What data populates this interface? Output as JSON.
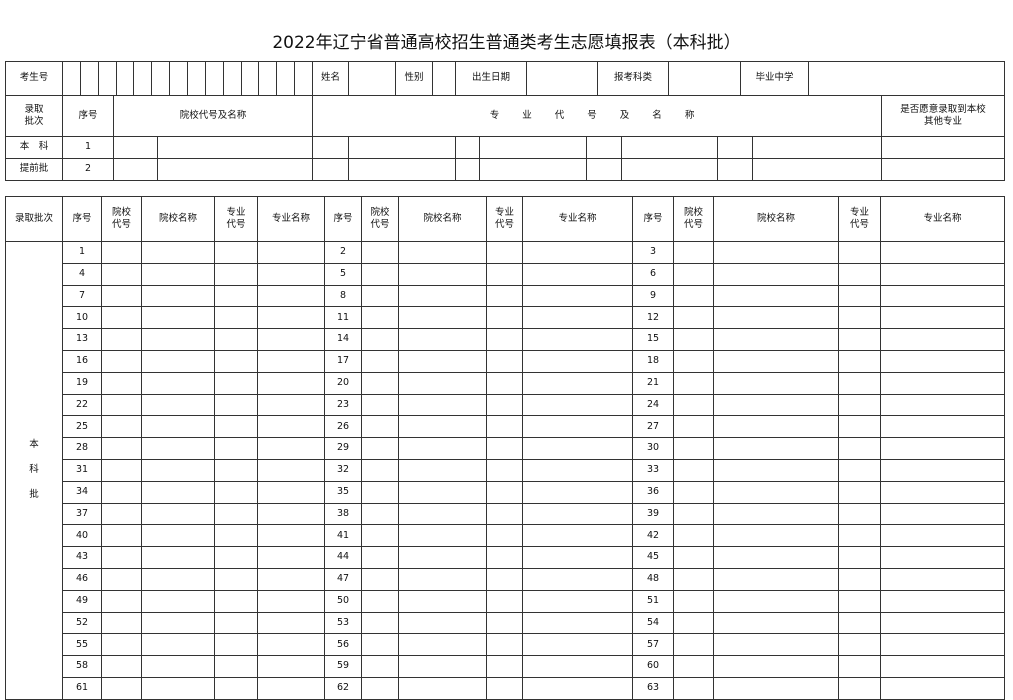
{
  "title": "2022年辽宁省普通高校招生普通类考生志愿填报表（本科批）",
  "info": {
    "exam_no": "考生号",
    "name": "姓名",
    "gender": "性别",
    "birth": "出生日期",
    "category": "报考科类",
    "school": "毕业中学"
  },
  "early": {
    "batch_label_1": "录取",
    "batch_label_2": "批次",
    "seq": "序号",
    "college": "院校代号及名称",
    "major": "专 业 代 号 及 名 称",
    "adjust_1": "是否愿意录取到本校",
    "adjust_2": "其他专业",
    "batch_1": "本　科",
    "batch_2": "提前批",
    "rows": [
      "1",
      "2"
    ]
  },
  "main": {
    "headers": {
      "batch": "录取批次",
      "seq": "序号",
      "code_1": "院校",
      "code_2": "代号",
      "college_name": "院校名称",
      "major_code_1": "专业",
      "major_code_2": "代号",
      "major_name": "专业名称"
    },
    "batch_chars": [
      "本",
      "科",
      "批"
    ],
    "rows": [
      [
        "1",
        "2",
        "3"
      ],
      [
        "4",
        "5",
        "6"
      ],
      [
        "7",
        "8",
        "9"
      ],
      [
        "10",
        "11",
        "12"
      ],
      [
        "13",
        "14",
        "15"
      ],
      [
        "16",
        "17",
        "18"
      ],
      [
        "19",
        "20",
        "21"
      ],
      [
        "22",
        "23",
        "24"
      ],
      [
        "25",
        "26",
        "27"
      ],
      [
        "28",
        "29",
        "30"
      ],
      [
        "31",
        "32",
        "33"
      ],
      [
        "34",
        "35",
        "36"
      ],
      [
        "37",
        "38",
        "39"
      ],
      [
        "40",
        "41",
        "42"
      ],
      [
        "43",
        "44",
        "45"
      ],
      [
        "46",
        "47",
        "48"
      ],
      [
        "49",
        "50",
        "51"
      ],
      [
        "52",
        "53",
        "54"
      ],
      [
        "55",
        "56",
        "57"
      ],
      [
        "58",
        "59",
        "60"
      ],
      [
        "61",
        "62",
        "63"
      ]
    ]
  }
}
